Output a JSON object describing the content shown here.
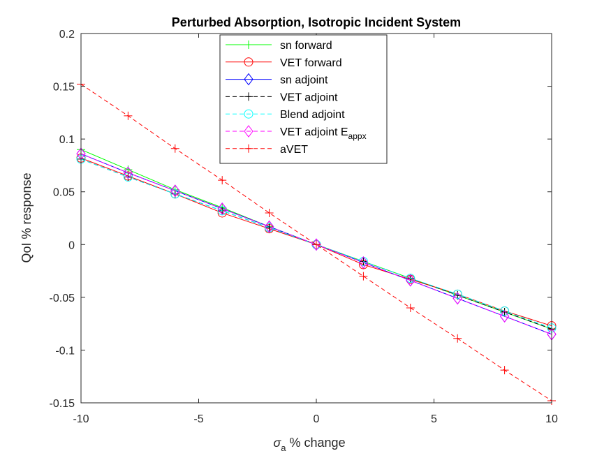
{
  "chart_data": {
    "type": "line",
    "title": "Perturbed Absorption, Isotropic Incident System",
    "xlabel": {
      "symbol": "σ",
      "subscript": "a",
      "suffix": " % change"
    },
    "ylabel": "QoI % response",
    "xlim": [
      -10,
      10
    ],
    "ylim": [
      -0.15,
      0.2
    ],
    "xticks": [
      -10,
      -5,
      0,
      5,
      10
    ],
    "xtick_labels": [
      "-10",
      "-5",
      "0",
      "5",
      "10"
    ],
    "yticks": [
      -0.15,
      -0.1,
      -0.05,
      0,
      0.05,
      0.1,
      0.15,
      0.2
    ],
    "ytick_labels": [
      "-0.15",
      "-0.1",
      "-0.05",
      "0",
      "0.05",
      "0.1",
      "0.15",
      "0.2"
    ],
    "grid": false,
    "legend_position": "top-center",
    "x": [
      -10,
      -8,
      -6,
      -4,
      -2,
      0,
      2,
      4,
      6,
      8,
      10
    ],
    "series": [
      {
        "name": "sn forward",
        "color": "#00ff00",
        "dash": "solid",
        "marker": "plus",
        "values": [
          0.09,
          0.071,
          0.052,
          0.035,
          0.017,
          0,
          -0.016,
          -0.032,
          -0.048,
          -0.064,
          -0.08
        ]
      },
      {
        "name": "VET forward",
        "color": "#ff0000",
        "dash": "solid",
        "marker": "circle",
        "values": [
          0.082,
          0.065,
          0.048,
          0.03,
          0.015,
          0,
          -0.019,
          -0.033,
          -0.047,
          -0.063,
          -0.077
        ]
      },
      {
        "name": "sn adjoint",
        "color": "#0000ff",
        "dash": "solid",
        "marker": "diamond",
        "values": [
          0.086,
          0.068,
          0.051,
          0.034,
          0.017,
          0,
          -0.017,
          -0.034,
          -0.051,
          -0.068,
          -0.085
        ]
      },
      {
        "name": "VET adjoint",
        "color": "#000000",
        "dash": "dashed",
        "marker": "plus",
        "values": [
          0.081,
          0.064,
          0.048,
          0.032,
          0.016,
          0,
          -0.016,
          -0.032,
          -0.048,
          -0.064,
          -0.08
        ]
      },
      {
        "name": "Blend adjoint",
        "color": "#00ffff",
        "dash": "dashed",
        "marker": "circle",
        "values": [
          0.081,
          0.064,
          0.048,
          0.032,
          0.016,
          0,
          -0.016,
          -0.032,
          -0.047,
          -0.063,
          -0.079
        ]
      },
      {
        "name": "VET adjoint E",
        "name_subscript": "appx",
        "color": "#ff00ff",
        "dash": "dashed",
        "marker": "diamond",
        "values": [
          0.086,
          0.068,
          0.051,
          0.034,
          0.017,
          0,
          -0.017,
          -0.034,
          -0.051,
          -0.068,
          -0.085
        ]
      },
      {
        "name": "aVET",
        "color": "#ff0000",
        "dash": "dashed",
        "marker": "plus",
        "values": [
          0.152,
          0.122,
          0.091,
          0.061,
          0.03,
          0,
          -0.03,
          -0.06,
          -0.089,
          -0.119,
          -0.148
        ]
      }
    ]
  }
}
